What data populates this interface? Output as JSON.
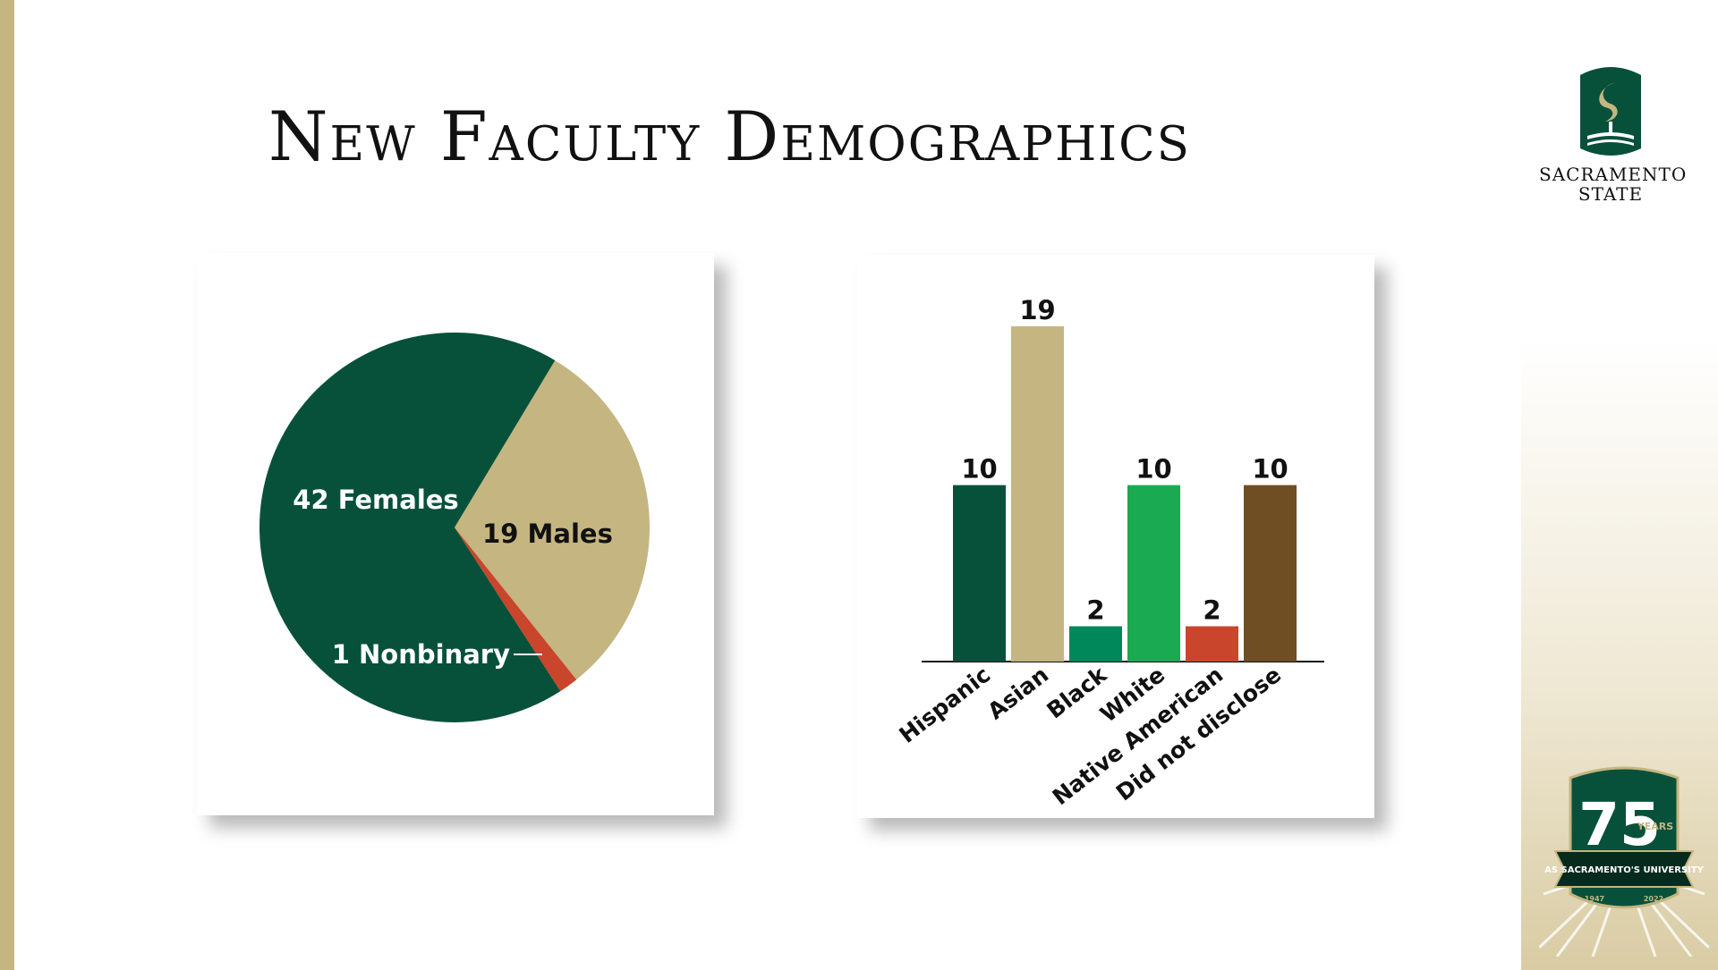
{
  "slide": {
    "title": "New Faculty Demographics"
  },
  "logo": {
    "line1": "SACRAMENTO",
    "line2": "STATE"
  },
  "badge": {
    "number": "75",
    "years": "YEARS",
    "banner": "AS SACRAMENTO'S UNIVERSITY",
    "start_year": "1947",
    "end_year": "2022"
  },
  "colors": {
    "dark_green": "#07513a",
    "gold": "#c5b580",
    "red": "#c9452b",
    "black_bar": "#00875a",
    "white_bar": "#1aaa52",
    "brown": "#6f4e24"
  },
  "chart_data": [
    {
      "type": "pie",
      "slices": [
        {
          "label": "42 Females",
          "value": 42,
          "color": "#07513a"
        },
        {
          "label": "19 Males",
          "value": 19,
          "color": "#c5b580"
        },
        {
          "label": "1 Nonbinary",
          "value": 1,
          "color": "#c9452b"
        }
      ]
    },
    {
      "type": "bar",
      "categories": [
        "Hispanic",
        "Asian",
        "Black",
        "White",
        "Native American",
        "Did not disclose"
      ],
      "values": [
        10,
        19,
        2,
        10,
        2,
        10
      ],
      "colors": [
        "#07513a",
        "#c5b580",
        "#00875a",
        "#1aaa52",
        "#c9452b",
        "#6f4e24"
      ]
    }
  ]
}
